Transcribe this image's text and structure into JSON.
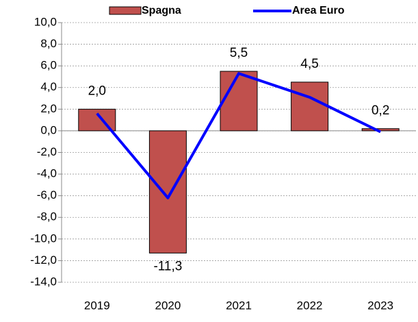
{
  "chart_data": {
    "type": "bar",
    "categories": [
      "2019",
      "2020",
      "2021",
      "2022",
      "2023"
    ],
    "series": [
      {
        "name": "Spagna",
        "type": "bar",
        "color": "#c0504d",
        "values": [
          2.0,
          -11.3,
          5.5,
          4.5,
          0.2
        ],
        "value_labels": [
          "2,0",
          "-11,3",
          "5,5",
          "4,5",
          "0,2"
        ]
      },
      {
        "name": "Area Euro",
        "type": "line",
        "color": "#0000ff",
        "values": [
          1.6,
          -6.2,
          5.3,
          3.1,
          -0.1
        ]
      }
    ],
    "ylim": [
      -14,
      10
    ],
    "yticks": [
      {
        "value": -14,
        "label": "-14,0"
      },
      {
        "value": -12,
        "label": "-12,0"
      },
      {
        "value": -10,
        "label": "-10,0"
      },
      {
        "value": -8,
        "label": "-8,0"
      },
      {
        "value": -6,
        "label": "-6,0"
      },
      {
        "value": -4,
        "label": "-4,0"
      },
      {
        "value": -2,
        "label": "-2,0"
      },
      {
        "value": 0,
        "label": "0,0"
      },
      {
        "value": 2,
        "label": "2,0"
      },
      {
        "value": 4,
        "label": "4,0"
      },
      {
        "value": 6,
        "label": "6,0"
      },
      {
        "value": 8,
        "label": "8,0"
      },
      {
        "value": 10,
        "label": "10,0"
      }
    ],
    "negative_label_color": "#ff0000",
    "grid": true,
    "legend": "top"
  }
}
